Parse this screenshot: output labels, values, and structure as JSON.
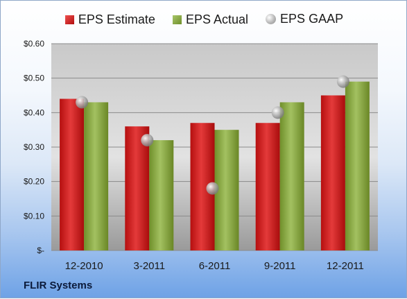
{
  "legend": {
    "estimate": "EPS Estimate",
    "actual": "EPS Actual",
    "gaap": "EPS GAAP"
  },
  "company": "FLIR Systems",
  "colors": {
    "estimate": "#d32222",
    "actual": "#8fae45",
    "gaap": "#b0b0b0"
  },
  "chart_data": {
    "type": "bar",
    "categories": [
      "12-2010",
      "3-2011",
      "6-2011",
      "9-2011",
      "12-2011"
    ],
    "series": [
      {
        "name": "EPS Estimate",
        "values": [
          0.44,
          0.36,
          0.37,
          0.37,
          0.45
        ]
      },
      {
        "name": "EPS Actual",
        "values": [
          0.43,
          0.32,
          0.35,
          0.43,
          0.49
        ]
      },
      {
        "name": "EPS GAAP",
        "type": "scatter",
        "values": [
          0.43,
          0.32,
          0.18,
          0.4,
          0.49
        ]
      }
    ],
    "ylim": [
      0,
      0.6
    ],
    "yticks": [
      0,
      0.1,
      0.2,
      0.3,
      0.4,
      0.5,
      0.6
    ],
    "ytick_labels": [
      "$-",
      "$0.10",
      "$0.20",
      "$0.30",
      "$0.40",
      "$0.50",
      "$0.60"
    ],
    "grid": true,
    "legend_position": "top"
  }
}
